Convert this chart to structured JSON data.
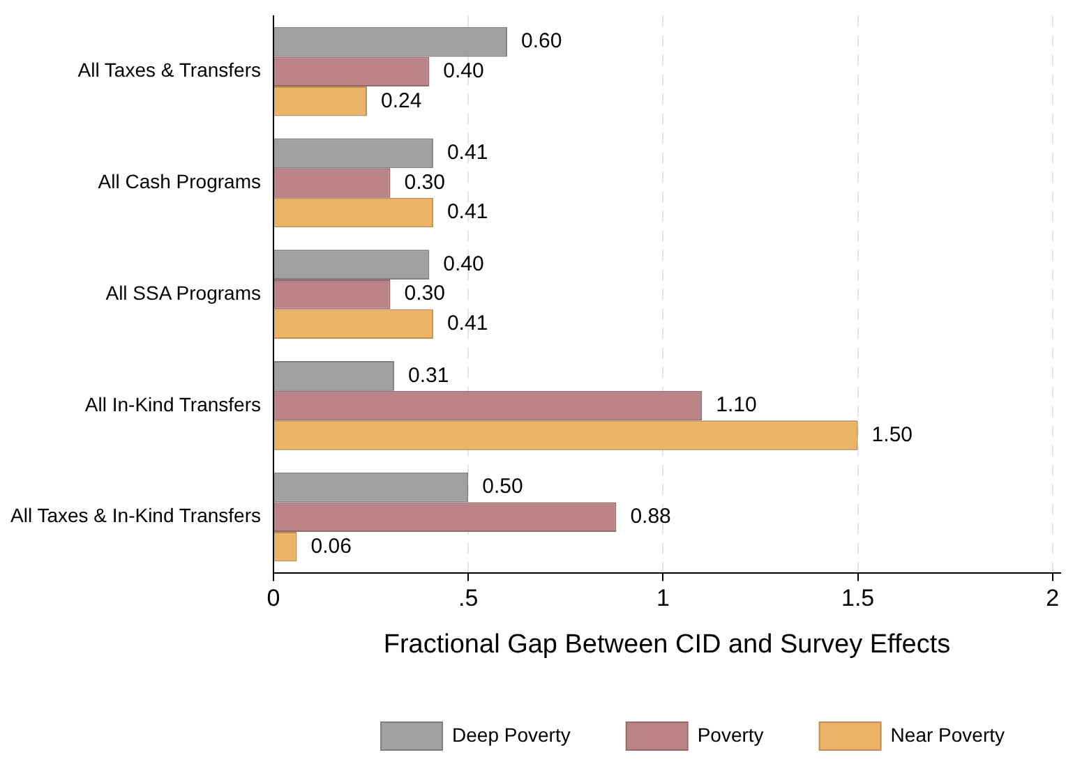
{
  "chart_data": {
    "type": "bar",
    "orientation": "horizontal",
    "xlabel": "Fractional Gap Between CID and Survey Effects",
    "categories": [
      "All Taxes & Transfers",
      "All Cash Programs",
      "All SSA Programs",
      "All In-Kind Transfers",
      "All Taxes & In-Kind Transfers"
    ],
    "series": [
      {
        "name": "Deep Poverty",
        "color": "#a0a0a0",
        "values": [
          0.6,
          0.41,
          0.4,
          0.31,
          0.5
        ],
        "value_labels": [
          "0.60",
          "0.41",
          "0.40",
          "0.31",
          "0.50"
        ]
      },
      {
        "name": "Poverty",
        "color": "#bc8387",
        "values": [
          0.4,
          0.3,
          0.3,
          1.1,
          0.88
        ],
        "value_labels": [
          "0.40",
          "0.30",
          "0.30",
          "1.10",
          "0.88"
        ]
      },
      {
        "name": "Near Poverty",
        "color": "#ecb366",
        "values": [
          0.24,
          0.41,
          0.41,
          1.5,
          0.06
        ],
        "value_labels": [
          "0.24",
          "0.41",
          "0.41",
          "1.50",
          "0.06"
        ]
      }
    ],
    "xlim": [
      0,
      2.02
    ],
    "xticks": [
      0,
      {
        "value": 0.5,
        "label": ".5"
      },
      1,
      1.5,
      2
    ],
    "grid": "x",
    "legend": "bottom"
  }
}
